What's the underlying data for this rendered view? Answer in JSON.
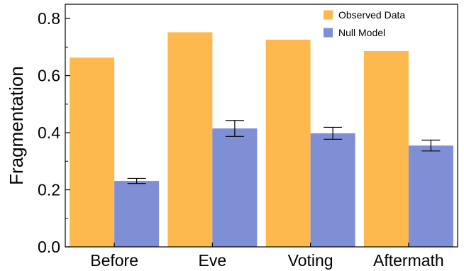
{
  "chart_data": {
    "type": "bar",
    "title": "",
    "xlabel": "",
    "ylabel": "Fragmentation",
    "categories": [
      "Before",
      "Eve",
      "Voting",
      "Aftermath"
    ],
    "ylim": [
      0,
      0.85
    ],
    "yticks": [
      "0.0",
      "0.2",
      "0.4",
      "0.6",
      "0.8"
    ],
    "legend_position": "top-right",
    "grid": false,
    "series": [
      {
        "name": "Observed Data",
        "color": "#FDB94E",
        "values": [
          0.663,
          0.752,
          0.726,
          0.686
        ]
      },
      {
        "name": "Null Model",
        "color": "#7F8FD6",
        "values": [
          0.231,
          0.415,
          0.398,
          0.355
        ],
        "error_low": [
          0.222,
          0.387,
          0.377,
          0.336
        ],
        "error_high": [
          0.24,
          0.443,
          0.419,
          0.374
        ]
      }
    ]
  }
}
